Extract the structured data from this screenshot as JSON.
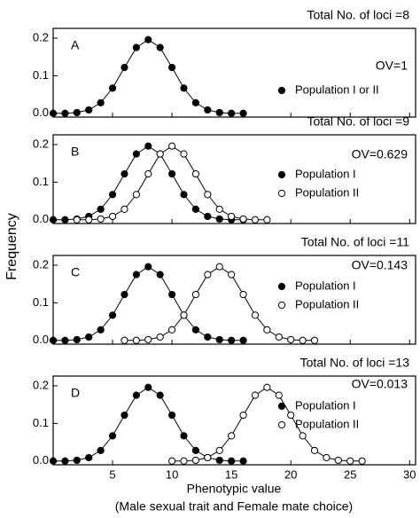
{
  "y_label": "Frequency",
  "x_label": "Phenotypic value",
  "x_label_2": "(Male sexual trait and Female mate choice)",
  "chart_data": [
    {
      "type": "line",
      "label": "A",
      "annotation": "Total No. of loci =8",
      "ov": "OV=1",
      "xlim": [
        0,
        30.5
      ],
      "xticks": [
        5,
        10,
        15,
        20,
        25,
        30
      ],
      "ylim": [
        -0.01,
        0.226
      ],
      "yticks": [
        {
          "value": 0,
          "label": "0.0"
        },
        0.1,
        0.2
      ],
      "series": [
        {
          "name": "Population I or II",
          "color": "#000000",
          "fill": "#000000",
          "x": [
            0,
            1,
            2,
            3,
            4,
            5,
            6,
            7,
            8,
            9,
            10,
            11,
            12,
            13,
            14,
            15,
            16
          ],
          "values": [
            0.0,
            0.0,
            0.002,
            0.009,
            0.028,
            0.067,
            0.122,
            0.175,
            0.196,
            0.175,
            0.122,
            0.067,
            0.028,
            0.009,
            0.002,
            0.0,
            0.0
          ]
        }
      ]
    },
    {
      "type": "line",
      "label": "B",
      "annotation": "Total No. of loci =9",
      "ov": "OV=0.629",
      "xlim": [
        0,
        30.5
      ],
      "xticks": [
        5,
        10,
        15,
        20,
        25,
        30
      ],
      "ylim": [
        -0.01,
        0.226
      ],
      "yticks": [
        {
          "value": 0,
          "label": "0.0"
        },
        0.1,
        0.2
      ],
      "series": [
        {
          "name": "Population I",
          "color": "#000000",
          "fill": "#000000",
          "x": [
            0,
            1,
            2,
            3,
            4,
            5,
            6,
            7,
            8,
            9,
            10,
            11,
            12,
            13,
            14,
            15,
            16
          ],
          "values": [
            0.0,
            0.0,
            0.002,
            0.009,
            0.028,
            0.067,
            0.122,
            0.175,
            0.196,
            0.175,
            0.122,
            0.067,
            0.028,
            0.009,
            0.002,
            0.0,
            0.0
          ]
        },
        {
          "name": "Population II",
          "color": "#000000",
          "fill": "#ffffff",
          "x": [
            2,
            3,
            4,
            5,
            6,
            7,
            8,
            9,
            10,
            11,
            12,
            13,
            14,
            15,
            16,
            17,
            18
          ],
          "values": [
            0.0,
            0.0,
            0.002,
            0.009,
            0.028,
            0.067,
            0.122,
            0.175,
            0.196,
            0.175,
            0.122,
            0.067,
            0.028,
            0.009,
            0.002,
            0.0,
            0.0
          ]
        }
      ]
    },
    {
      "type": "line",
      "label": "C",
      "annotation": "Total No. of loci =11",
      "ov": "OV=0.143",
      "xlim": [
        0,
        30.5
      ],
      "xticks": [
        5,
        10,
        15,
        20,
        25,
        30
      ],
      "ylim": [
        -0.01,
        0.226
      ],
      "yticks": [
        {
          "value": 0,
          "label": "0.0"
        },
        0.1,
        0.2
      ],
      "series": [
        {
          "name": "Population I",
          "color": "#000000",
          "fill": "#000000",
          "x": [
            0,
            1,
            2,
            3,
            4,
            5,
            6,
            7,
            8,
            9,
            10,
            11,
            12,
            13,
            14,
            15,
            16
          ],
          "values": [
            0.0,
            0.0,
            0.002,
            0.009,
            0.028,
            0.067,
            0.122,
            0.175,
            0.196,
            0.175,
            0.122,
            0.067,
            0.028,
            0.009,
            0.002,
            0.0,
            0.0
          ]
        },
        {
          "name": "Population II",
          "color": "#000000",
          "fill": "#ffffff",
          "x": [
            6,
            7,
            8,
            9,
            10,
            11,
            12,
            13,
            14,
            15,
            16,
            17,
            18,
            19,
            20,
            21,
            22
          ],
          "values": [
            0.0,
            0.0,
            0.002,
            0.009,
            0.028,
            0.067,
            0.122,
            0.175,
            0.196,
            0.175,
            0.122,
            0.067,
            0.028,
            0.009,
            0.002,
            0.0,
            0.0
          ]
        }
      ]
    },
    {
      "type": "line",
      "label": "D",
      "annotation": "Total No. of loci =13",
      "ov": "OV=0.013",
      "xlim": [
        0,
        30.5
      ],
      "xticks": [
        5,
        10,
        15,
        20,
        25,
        30
      ],
      "ylim": [
        -0.01,
        0.226
      ],
      "yticks": [
        {
          "value": 0,
          "label": "0.0"
        },
        0.1,
        0.2
      ],
      "series": [
        {
          "name": "Population I",
          "color": "#000000",
          "fill": "#000000",
          "x": [
            0,
            1,
            2,
            3,
            4,
            5,
            6,
            7,
            8,
            9,
            10,
            11,
            12,
            13,
            14,
            15,
            16
          ],
          "values": [
            0.0,
            0.0,
            0.002,
            0.009,
            0.028,
            0.067,
            0.122,
            0.175,
            0.196,
            0.175,
            0.122,
            0.067,
            0.028,
            0.009,
            0.002,
            0.0,
            0.0
          ]
        },
        {
          "name": "Population II",
          "color": "#000000",
          "fill": "#ffffff",
          "x": [
            10,
            11,
            12,
            13,
            14,
            15,
            16,
            17,
            18,
            19,
            20,
            21,
            22,
            23,
            24,
            25,
            26
          ],
          "values": [
            0.0,
            0.0,
            0.002,
            0.009,
            0.028,
            0.067,
            0.122,
            0.175,
            0.196,
            0.175,
            0.122,
            0.067,
            0.028,
            0.009,
            0.002,
            0.0,
            0.0
          ]
        }
      ]
    }
  ]
}
